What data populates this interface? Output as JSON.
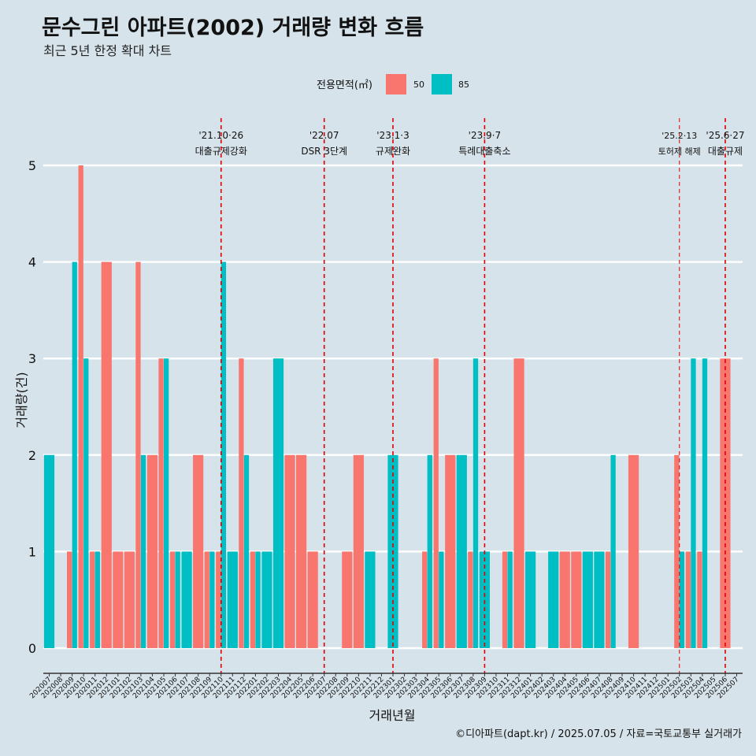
{
  "title": "문수그린 아파트(2002) 거래량 변화 흐름",
  "subtitle": "최근 5년 한정 확대 차트",
  "caption": "©디아파트(dapt.kr) / 2025.07.05 / 자료=국토교통부 실거래가",
  "colors": {
    "s50": "#f8766d",
    "s85": "#00bfc4",
    "vline": "#e00000",
    "grid": "#ffffff"
  },
  "chart_data": {
    "type": "bar",
    "xlabel": "거래년월",
    "ylabel": "거래량(건)",
    "ylim": [
      -0.2,
      5.3
    ],
    "yticks": [
      0,
      1,
      2,
      3,
      4,
      5
    ],
    "legend": {
      "title": "전용면적(㎡)",
      "placement": "top",
      "entries": [
        "50",
        "85"
      ]
    },
    "categories": [
      "202007",
      "202008",
      "202009",
      "202010",
      "202011",
      "202012",
      "202101",
      "202102",
      "202103",
      "202104",
      "202105",
      "202106",
      "202107",
      "202108",
      "202109",
      "202110",
      "202111",
      "202112",
      "202201",
      "202202",
      "202203",
      "202204",
      "202205",
      "202206",
      "202207",
      "202208",
      "202209",
      "202210",
      "202211",
      "202212",
      "202301",
      "202302",
      "202303",
      "202304",
      "202305",
      "202306",
      "202307",
      "202308",
      "202309",
      "202310",
      "202311",
      "202312",
      "202401",
      "202402",
      "202403",
      "202404",
      "202405",
      "202406",
      "202407",
      "202408",
      "202409",
      "202410",
      "202411",
      "202412",
      "202501",
      "202502",
      "202503",
      "202504",
      "202505",
      "202506",
      "202507"
    ],
    "series": [
      {
        "name": "50",
        "values": [
          0,
          0,
          1,
          5,
          1,
          4,
          1,
          1,
          4,
          2,
          3,
          1,
          0,
          2,
          1,
          1,
          0,
          3,
          1,
          0,
          0,
          2,
          2,
          1,
          0,
          0,
          1,
          2,
          0,
          0,
          0,
          0,
          0,
          1,
          3,
          2,
          0,
          1,
          0,
          0,
          1,
          3,
          0,
          0,
          0,
          1,
          1,
          0,
          0,
          1,
          0,
          2,
          0,
          0,
          0,
          2,
          1,
          1,
          0,
          3,
          0
        ]
      },
      {
        "name": "85",
        "values": [
          2,
          0,
          4,
          3,
          1,
          0,
          0,
          0,
          2,
          0,
          3,
          1,
          1,
          0,
          1,
          4,
          1,
          2,
          1,
          1,
          3,
          0,
          0,
          0,
          0,
          0,
          0,
          0,
          1,
          0,
          2,
          0,
          0,
          2,
          1,
          0,
          2,
          3,
          1,
          0,
          1,
          0,
          1,
          0,
          1,
          0,
          0,
          1,
          1,
          2,
          0,
          0,
          0,
          0,
          0,
          1,
          3,
          3,
          0,
          0,
          0
        ]
      }
    ],
    "annotations": [
      {
        "month": "202110",
        "date": "'21.10·26",
        "label": "대출규제강화"
      },
      {
        "month": "202207",
        "date": "'22.07",
        "label": "DSR 3단계"
      },
      {
        "month": "202301",
        "date": "'23.1·3",
        "label": "규제완화"
      },
      {
        "month": "202309",
        "date": "'23.9·7",
        "label": "특례대출축소"
      },
      {
        "month": "202502",
        "date": "'25.2·13",
        "label": "토허제 해제"
      },
      {
        "month": "202506",
        "date": "'25.6·27",
        "label": "대출규제"
      }
    ]
  }
}
